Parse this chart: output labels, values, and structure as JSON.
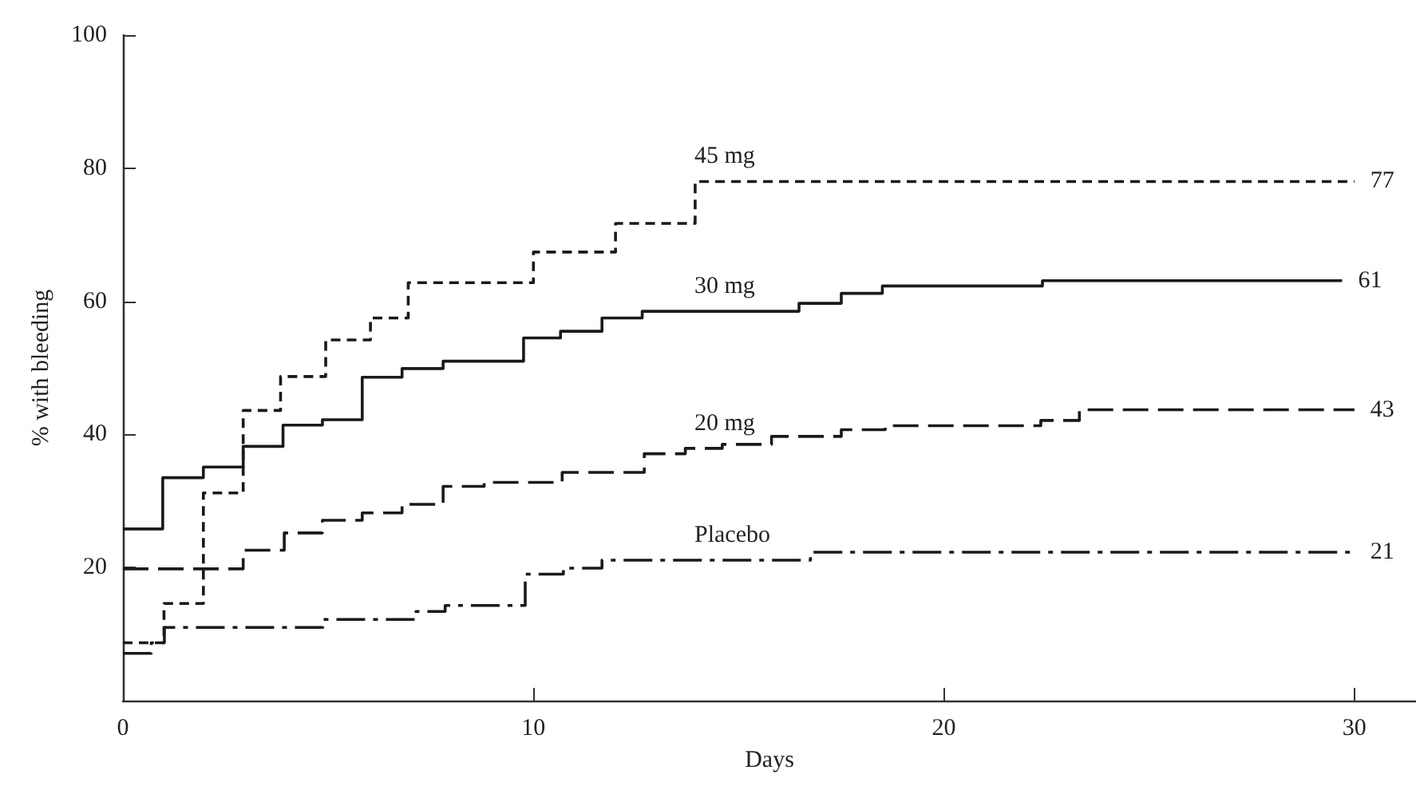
{
  "chart_data": {
    "type": "step",
    "xlabel": "Days",
    "ylabel": "% with bleeding",
    "xlim": [
      0,
      31.5
    ],
    "xticks": [
      0,
      10,
      20,
      30
    ],
    "ylim": [
      0,
      100
    ],
    "yticks": [
      {
        "value": 0,
        "label": null
      },
      20,
      40,
      60,
      80,
      100
    ],
    "grid": false,
    "legend": false,
    "marker": "none",
    "series": [
      {
        "name": "45 mg",
        "color": "#1a1a1a",
        "line_style": "dashed",
        "x": [
          0,
          1,
          1.96,
          2.93,
          3.84,
          4.94,
          6.03,
          6.95,
          10,
          12,
          13.94,
          30
        ],
        "values": [
          8.7,
          14.6,
          31.2,
          43.6,
          48.7,
          54.2,
          57.5,
          62.8,
          67.4,
          71.7,
          78,
          78
        ]
      },
      {
        "name": "30 mg",
        "color": "#1a1a1a",
        "line_style": "solid",
        "x": [
          0,
          0.97,
          1.96,
          2.93,
          3.9,
          4.86,
          5.83,
          6.8,
          7.8,
          9.76,
          10.66,
          11.67,
          12.65,
          16.47,
          17.5,
          18.5,
          22.4,
          29.7
        ],
        "values": [
          25.8,
          33.5,
          35.1,
          38.2,
          41.4,
          42.2,
          48.6,
          49.9,
          51,
          54.5,
          55.5,
          57.5,
          58.5,
          59.7,
          61.2,
          62.3,
          63.1,
          63.1
        ]
      },
      {
        "name": "20 mg",
        "color": "#1a1a1a",
        "line_style": "dashed",
        "x": [
          0,
          2.93,
          3.93,
          4.86,
          5.83,
          6.8,
          7.8,
          8.8,
          10.7,
          12.7,
          13.7,
          14.6,
          15.8,
          17.5,
          18.57,
          22.36,
          23.3,
          30
        ],
        "values": [
          19.8,
          22.6,
          25.2,
          27.1,
          28.2,
          29.5,
          32.2,
          32.8,
          34.3,
          37.1,
          37.9,
          38.5,
          39.7,
          40.7,
          41.3,
          42.1,
          43.7,
          43.7
        ]
      },
      {
        "name": "Placebo",
        "color": "#1a1a1a",
        "line_style": "dashed",
        "x": [
          0,
          0.69,
          1.01,
          4.87,
          7.14,
          7.85,
          9.8,
          10.73,
          11.67,
          16.75,
          30
        ],
        "values": [
          7.1,
          8.7,
          11,
          12.2,
          13.4,
          14.3,
          19,
          19.9,
          21.1,
          22.3,
          22.3
        ]
      }
    ],
    "annotations": [
      "77",
      "61",
      "43",
      "21"
    ]
  }
}
